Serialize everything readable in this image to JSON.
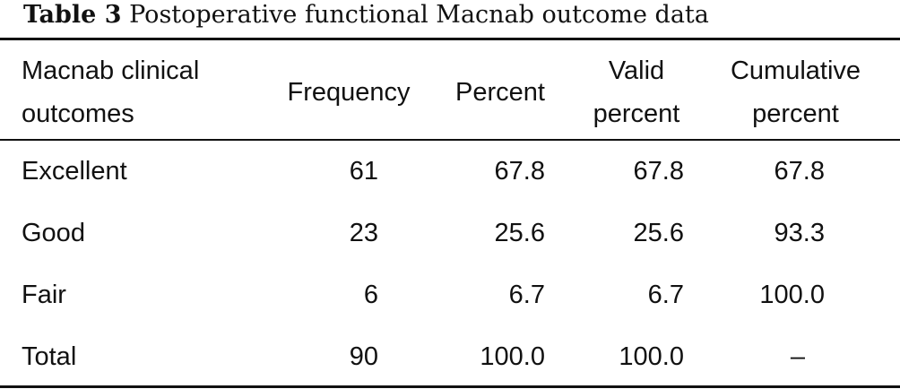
{
  "caption": {
    "label": "Table 3",
    "text": "Postoperative functional Macnab outcome data"
  },
  "table": {
    "headers": {
      "outcome": [
        "Macnab clinical",
        "outcomes"
      ],
      "frequency": "Frequency",
      "percent": "Percent",
      "valid_percent": [
        "Valid",
        "percent"
      ],
      "cumulative_percent": [
        "Cumulative",
        "percent"
      ]
    },
    "rows": [
      {
        "outcome": "Excellent",
        "frequency": "61",
        "percent": "67.8",
        "valid_percent": "67.8",
        "cumulative_percent": "67.8"
      },
      {
        "outcome": "Good",
        "frequency": "23",
        "percent": "25.6",
        "valid_percent": "25.6",
        "cumulative_percent": "93.3"
      },
      {
        "outcome": "Fair",
        "frequency": "6",
        "percent": "6.7",
        "valid_percent": "6.7",
        "cumulative_percent": "100.0"
      },
      {
        "outcome": "Total",
        "frequency": "90",
        "percent": "100.0",
        "valid_percent": "100.0",
        "cumulative_percent": "–"
      }
    ]
  }
}
